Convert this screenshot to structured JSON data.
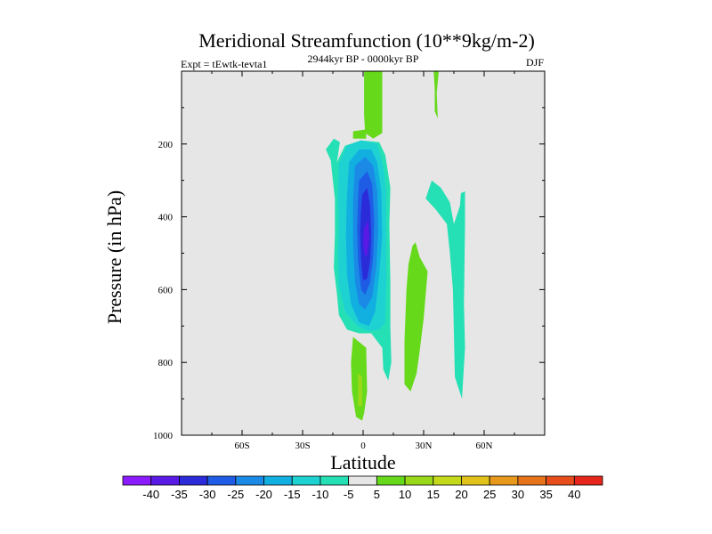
{
  "chart_data": {
    "type": "heatmap",
    "title": "Meridional Streamfunction (10**9kg/m-2)",
    "left_label": "Expt = tEwtk-tevta1",
    "center_label": "2944kyr BP - 0000kyr BP",
    "right_label": "DJF",
    "xlabel": "Latitude",
    "ylabel": "Pressure (in hPa)",
    "xlim": [
      -90,
      90
    ],
    "ylim": [
      0,
      1000
    ],
    "y_reversed": true,
    "x_ticks": [
      {
        "value": -60,
        "label": "60S"
      },
      {
        "value": -30,
        "label": "30S"
      },
      {
        "value": 0,
        "label": "0"
      },
      {
        "value": 30,
        "label": "30N"
      },
      {
        "value": 60,
        "label": "60N"
      }
    ],
    "y_ticks": [
      {
        "value": 200,
        "label": "200"
      },
      {
        "value": 400,
        "label": "400"
      },
      {
        "value": 600,
        "label": "600"
      },
      {
        "value": 800,
        "label": "800"
      },
      {
        "value": 1000,
        "label": "1000"
      }
    ],
    "background_color": "#e6e6e6",
    "colorbar": {
      "labels": [
        "-40",
        "-35",
        "-30",
        "-25",
        "-20",
        "-15",
        "-10",
        "-5",
        "5",
        "10",
        "15",
        "20",
        "25",
        "30",
        "35",
        "40"
      ],
      "colors": [
        "#8c1aff",
        "#5a1ae6",
        "#2b2bd9",
        "#1f5ce6",
        "#1a8ae6",
        "#11b0e0",
        "#1fd2d2",
        "#26e0b5",
        "#e6e6e6",
        "#66d91a",
        "#99d91a",
        "#c4d91a",
        "#e0c21a",
        "#e6991a",
        "#e6731a",
        "#e64d1a",
        "#e6261a"
      ]
    },
    "regions": [
      {
        "level": "5",
        "color": "#66d91a",
        "points": [
          [
            0.5,
            0
          ],
          [
            9.5,
            0
          ],
          [
            9.5,
            170
          ],
          [
            5,
            185
          ],
          [
            1,
            170
          ],
          [
            0.5,
            120
          ]
        ]
      },
      {
        "level": "5",
        "color": "#66d91a",
        "points": [
          [
            -5,
            165
          ],
          [
            1.5,
            160
          ],
          [
            1.5,
            185
          ],
          [
            -5,
            185
          ]
        ]
      },
      {
        "level": "5",
        "color": "#66d91a",
        "points": [
          [
            35,
            0
          ],
          [
            37.5,
            0
          ],
          [
            36.5,
            60
          ],
          [
            37,
            130
          ],
          [
            35.5,
            110
          ],
          [
            35.5,
            50
          ]
        ]
      },
      {
        "level": "5",
        "color": "#66d91a",
        "points": [
          [
            24.5,
            480
          ],
          [
            26,
            470
          ],
          [
            28,
            510
          ],
          [
            32,
            550
          ],
          [
            30,
            680
          ],
          [
            28,
            770
          ],
          [
            26.5,
            830
          ],
          [
            23.5,
            880
          ],
          [
            20.5,
            860
          ],
          [
            20.5,
            740
          ],
          [
            21.5,
            600
          ],
          [
            22.5,
            530
          ]
        ]
      },
      {
        "level": "5",
        "color": "#66d91a",
        "points": [
          [
            -5,
            730
          ],
          [
            1.5,
            760
          ],
          [
            2,
            880
          ],
          [
            0.5,
            940
          ],
          [
            -0.5,
            960
          ],
          [
            -3.5,
            950
          ],
          [
            -5.5,
            880
          ],
          [
            -6,
            800
          ]
        ]
      },
      {
        "level": "10",
        "color": "#99d91a",
        "points": [
          [
            -2.5,
            830
          ],
          [
            -0.5,
            840
          ],
          [
            -0.5,
            920
          ],
          [
            -2.5,
            920
          ]
        ]
      },
      {
        "level": "-5",
        "color": "#26e0b5",
        "points": [
          [
            -18.5,
            215
          ],
          [
            -14.5,
            185
          ],
          [
            -11.5,
            195
          ],
          [
            -13,
            250
          ],
          [
            -9,
            205
          ],
          [
            -1,
            190
          ],
          [
            8,
            195
          ],
          [
            11,
            230
          ],
          [
            13.5,
            320
          ],
          [
            13,
            420
          ],
          [
            13.5,
            580
          ],
          [
            13.5,
            700
          ],
          [
            14,
            800
          ],
          [
            12.5,
            850
          ],
          [
            10,
            820
          ],
          [
            9.5,
            760
          ],
          [
            4,
            720
          ],
          [
            -2,
            720
          ],
          [
            -8,
            710
          ],
          [
            -12,
            670
          ],
          [
            -13,
            610
          ],
          [
            -14.5,
            540
          ],
          [
            -14,
            450
          ],
          [
            -14,
            350
          ],
          [
            -15,
            300
          ],
          [
            -16,
            245
          ]
        ]
      },
      {
        "level": "-5",
        "color": "#26e0b5",
        "points": [
          [
            34,
            300
          ],
          [
            38.5,
            320
          ],
          [
            43,
            360
          ],
          [
            45,
            420
          ],
          [
            48,
            370
          ],
          [
            48.5,
            335
          ],
          [
            50.5,
            330
          ],
          [
            50.5,
            420
          ],
          [
            50,
            640
          ],
          [
            50.5,
            760
          ],
          [
            49,
            900
          ],
          [
            45.5,
            840
          ],
          [
            45,
            720
          ],
          [
            44.5,
            600
          ],
          [
            43,
            500
          ],
          [
            41.5,
            420
          ],
          [
            36,
            380
          ],
          [
            31,
            350
          ]
        ]
      },
      {
        "level": "-10",
        "color": "#1fd2d2",
        "points": [
          [
            -12,
            255
          ],
          [
            -8,
            205
          ],
          [
            -1,
            190
          ],
          [
            7,
            200
          ],
          [
            10,
            260
          ],
          [
            11.5,
            330
          ],
          [
            11.5,
            480
          ],
          [
            11.5,
            580
          ],
          [
            11,
            690
          ],
          [
            8,
            710
          ],
          [
            3,
            715
          ],
          [
            -3,
            700
          ],
          [
            -9,
            660
          ],
          [
            -12,
            590
          ],
          [
            -12.5,
            500
          ],
          [
            -12,
            420
          ],
          [
            -12.5,
            340
          ]
        ]
      },
      {
        "level": "-15",
        "color": "#11b0e0",
        "points": [
          [
            -7,
            250
          ],
          [
            -2,
            215
          ],
          [
            4,
            215
          ],
          [
            7,
            250
          ],
          [
            9,
            330
          ],
          [
            9.5,
            450
          ],
          [
            8,
            560
          ],
          [
            6,
            660
          ],
          [
            3,
            700
          ],
          [
            -2,
            690
          ],
          [
            -6,
            640
          ],
          [
            -8,
            560
          ],
          [
            -8.5,
            450
          ],
          [
            -8,
            340
          ]
        ]
      },
      {
        "level": "-20",
        "color": "#1a8ae6",
        "points": [
          [
            -4,
            260
          ],
          [
            1,
            235
          ],
          [
            5,
            260
          ],
          [
            7,
            330
          ],
          [
            7.5,
            440
          ],
          [
            6.5,
            540
          ],
          [
            4.5,
            620
          ],
          [
            1,
            655
          ],
          [
            -2,
            640
          ],
          [
            -4,
            580
          ],
          [
            -5,
            470
          ],
          [
            -5,
            350
          ]
        ]
      },
      {
        "level": "-25",
        "color": "#1f5ce6",
        "points": [
          [
            -2,
            300
          ],
          [
            2,
            275
          ],
          [
            4.5,
            310
          ],
          [
            5.5,
            410
          ],
          [
            5,
            510
          ],
          [
            3.5,
            580
          ],
          [
            1,
            615
          ],
          [
            -1,
            600
          ],
          [
            -2.5,
            520
          ],
          [
            -3,
            430
          ],
          [
            -2.5,
            350
          ]
        ]
      },
      {
        "level": "-30",
        "color": "#2b2bd9",
        "points": [
          [
            -0.5,
            340
          ],
          [
            2,
            320
          ],
          [
            3.5,
            370
          ],
          [
            4,
            450
          ],
          [
            3.5,
            520
          ],
          [
            2,
            570
          ],
          [
            0,
            575
          ],
          [
            -1,
            520
          ],
          [
            -1.5,
            440
          ],
          [
            -1,
            380
          ]
        ]
      },
      {
        "level": "-35",
        "color": "#5a1ae6",
        "points": [
          [
            0.5,
            430
          ],
          [
            2.5,
            410
          ],
          [
            3,
            460
          ],
          [
            2,
            510
          ],
          [
            0.5,
            500
          ],
          [
            0,
            470
          ]
        ]
      }
    ]
  }
}
